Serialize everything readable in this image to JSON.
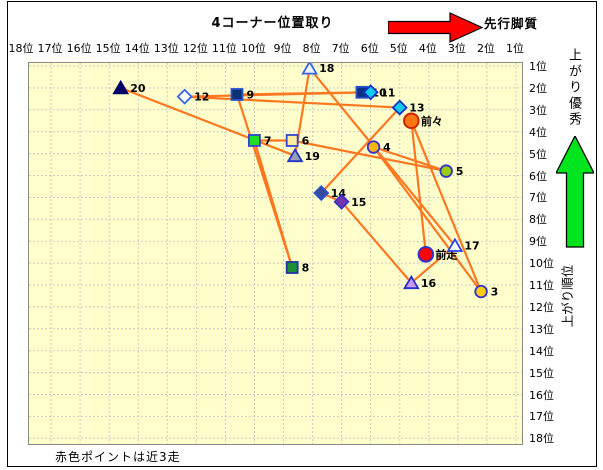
{
  "title": "4コーナー位置取り",
  "annotations": {
    "pace_style_label": "先行脚質",
    "finish_quality_label": "上がり優秀",
    "finish_rank_axis_label": "上がり順位",
    "footnote": "赤色ポイントは近3走"
  },
  "colors": {
    "plot_bg": "#FFFFCC",
    "grid": "#C9C9C9",
    "series_line": "#FF7720",
    "red_arrow": "#FF0000",
    "green_arrow": "#00E41E",
    "axis_text": "#000000"
  },
  "chart_data": {
    "type": "scatter",
    "title": "4コーナー位置取り",
    "x_axis": {
      "labels": [
        "18位",
        "17位",
        "16位",
        "15位",
        "14位",
        "13位",
        "12位",
        "11位",
        "10位",
        "9位",
        "8位",
        "7位",
        "6位",
        "5位",
        "4位",
        "3位",
        "2位",
        "1位"
      ],
      "direction": "18位 left to 1位 right (reversed)",
      "range": [
        18,
        1
      ]
    },
    "y_axis": {
      "labels": [
        "1位",
        "2位",
        "3位",
        "4位",
        "5位",
        "6位",
        "7位",
        "8位",
        "9位",
        "10位",
        "11位",
        "12位",
        "13位",
        "14位",
        "15位",
        "16位",
        "17位",
        "18位"
      ],
      "direction": "1位 top to 18位 bottom",
      "range": [
        1,
        18
      ]
    },
    "grid": "on",
    "connection": "points connected by orange line in listed order (most recent race first)",
    "points": [
      {
        "label": "前走",
        "x": 4.1,
        "y": 9.6,
        "shape": "circle",
        "fill": "#FF0000",
        "stroke": "#3333CC",
        "size": "large"
      },
      {
        "label": "前々",
        "x": 4.6,
        "y": 3.5,
        "shape": "circle",
        "fill": "#FF7711",
        "stroke": "#CC2200",
        "size": "large"
      },
      {
        "label": "3",
        "x": 2.2,
        "y": 11.3,
        "shape": "circle",
        "fill": "#FFCC11",
        "stroke": "#3333CC",
        "size": "normal"
      },
      {
        "label": "4",
        "x": 5.9,
        "y": 4.7,
        "shape": "circle",
        "fill": "#FFB413",
        "stroke": "#3333CC",
        "size": "normal"
      },
      {
        "label": "5",
        "x": 3.4,
        "y": 5.8,
        "shape": "circle",
        "fill": "#99CC11",
        "stroke": "#3333CC",
        "size": "normal"
      },
      {
        "label": "6",
        "x": 8.7,
        "y": 4.4,
        "shape": "square",
        "fill": "#FFEC9E",
        "stroke": "#3344CC",
        "size": "normal"
      },
      {
        "label": "7",
        "x": 10.0,
        "y": 4.4,
        "shape": "square",
        "fill": "#22DD22",
        "stroke": "#3344CC",
        "size": "normal"
      },
      {
        "label": "8",
        "x": 8.7,
        "y": 10.2,
        "shape": "square",
        "fill": "#1E8F33",
        "stroke": "#2233AA",
        "size": "normal"
      },
      {
        "label": "9",
        "x": 10.6,
        "y": 2.3,
        "shape": "square",
        "fill": "#0B2F70",
        "stroke": "#2952CC",
        "size": "normal"
      },
      {
        "label": "10",
        "x": 6.3,
        "y": 2.2,
        "shape": "square",
        "fill": "#0B2F85",
        "stroke": "#2952CC",
        "size": "normal"
      },
      {
        "label": "11",
        "x": 6.0,
        "y": 2.2,
        "shape": "diamond",
        "fill": "#11CCEE",
        "stroke": "#1133CC",
        "size": "normal"
      },
      {
        "label": "12",
        "x": 12.4,
        "y": 2.4,
        "shape": "diamond",
        "fill": "#FFFFFF",
        "stroke": "#3366EE",
        "size": "normal"
      },
      {
        "label": "13",
        "x": 5.0,
        "y": 2.9,
        "shape": "diamond",
        "fill": "#11CCEE",
        "stroke": "#1133CC",
        "size": "normal"
      },
      {
        "label": "14",
        "x": 7.7,
        "y": 6.8,
        "shape": "diamond",
        "fill": "#3A4A9F",
        "stroke": "#2952CC",
        "size": "normal"
      },
      {
        "label": "15",
        "x": 7.0,
        "y": 7.2,
        "shape": "diamond",
        "fill": "#7733AA",
        "stroke": "#3333CC",
        "size": "normal"
      },
      {
        "label": "16",
        "x": 4.6,
        "y": 10.9,
        "shape": "triangle",
        "fill": "#CC99FF",
        "stroke": "#2233CC",
        "size": "normal"
      },
      {
        "label": "17",
        "x": 3.1,
        "y": 9.2,
        "shape": "triangle",
        "fill": "#FFFFFF",
        "stroke": "#2244EE",
        "size": "normal"
      },
      {
        "label": "18",
        "x": 8.1,
        "y": 1.1,
        "shape": "triangle",
        "fill": "#EEF2FF",
        "stroke": "#3366EE",
        "size": "normal"
      },
      {
        "label": "19",
        "x": 8.6,
        "y": 5.1,
        "shape": "triangle",
        "fill": "#99A0B3",
        "stroke": "#2233CC",
        "size": "normal"
      },
      {
        "label": "20",
        "x": 14.6,
        "y": 2.0,
        "shape": "triangle",
        "fill": "#000066",
        "stroke": "#000066",
        "size": "normal"
      }
    ]
  }
}
